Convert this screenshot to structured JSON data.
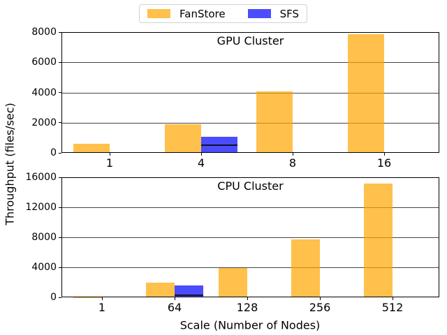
{
  "figure": {
    "xlabel": "Scale (Number of Nodes)",
    "ylabel": "Throughput (files/sec)"
  },
  "legend": {
    "items": [
      {
        "label": "FanStore",
        "color": "rgba(255,165,0,0.7)"
      },
      {
        "label": "SFS",
        "color": "rgba(0,0,255,0.7)"
      }
    ]
  },
  "chart_data": [
    {
      "type": "bar",
      "title": "GPU Cluster",
      "categories": [
        "1",
        "4",
        "8",
        "16"
      ],
      "series": [
        {
          "name": "FanStore",
          "color": "rgba(255,165,0,0.7)",
          "values": [
            600,
            1900,
            4080,
            7860
          ]
        },
        {
          "name": "SFS",
          "color": "rgba(0,0,255,0.7)",
          "values": [
            null,
            1080,
            null,
            null
          ],
          "marker_lines": [
            null,
            510,
            null,
            null
          ],
          "marker_color": "#10102a"
        }
      ],
      "ylim": [
        0,
        8000
      ],
      "yticks": [
        0,
        2000,
        4000,
        6000,
        8000
      ],
      "grid": true,
      "legend_position": "upper-center-of-figure"
    },
    {
      "type": "bar",
      "title": "CPU Cluster",
      "categories": [
        "1",
        "64",
        "128",
        "256",
        "512"
      ],
      "series": [
        {
          "name": "FanStore",
          "color": "rgba(255,165,0,0.7)",
          "values": [
            30,
            1950,
            3900,
            7700,
            15150
          ]
        },
        {
          "name": "SFS",
          "color": "rgba(0,0,255,0.7)",
          "values": [
            null,
            1550,
            null,
            null,
            null
          ],
          "marker_lines": [
            null,
            250,
            null,
            null,
            null
          ],
          "marker_color": "#10102a"
        }
      ],
      "ylim": [
        0,
        16000
      ],
      "yticks": [
        0,
        4000,
        8000,
        12000,
        16000
      ],
      "grid": true
    }
  ]
}
